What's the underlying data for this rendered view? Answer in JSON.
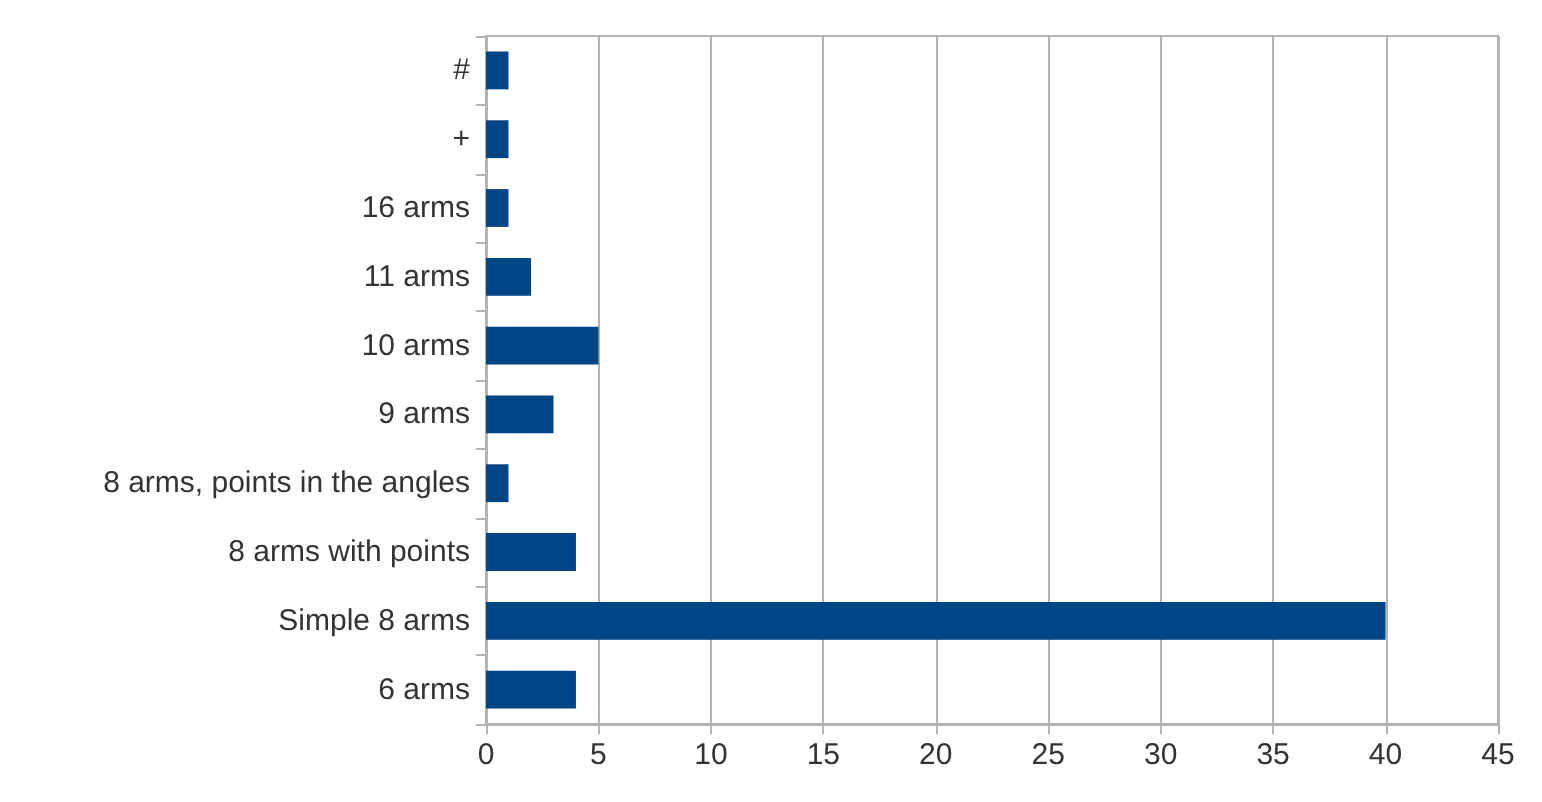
{
  "chart_data": {
    "type": "bar",
    "orientation": "horizontal",
    "categories": [
      "#",
      "+",
      "16 arms",
      "11 arms",
      "10 arms",
      "9 arms",
      "8 arms, points in the angles",
      "8 arms with points",
      "Simple 8 arms",
      "6 arms"
    ],
    "values": [
      1,
      1,
      1,
      2,
      5,
      3,
      1,
      4,
      40,
      4
    ],
    "color": "#004586",
    "xlim": [
      0,
      45
    ],
    "xticks": [
      0,
      5,
      10,
      15,
      20,
      25,
      30,
      35,
      40,
      45
    ],
    "grid": "x"
  }
}
